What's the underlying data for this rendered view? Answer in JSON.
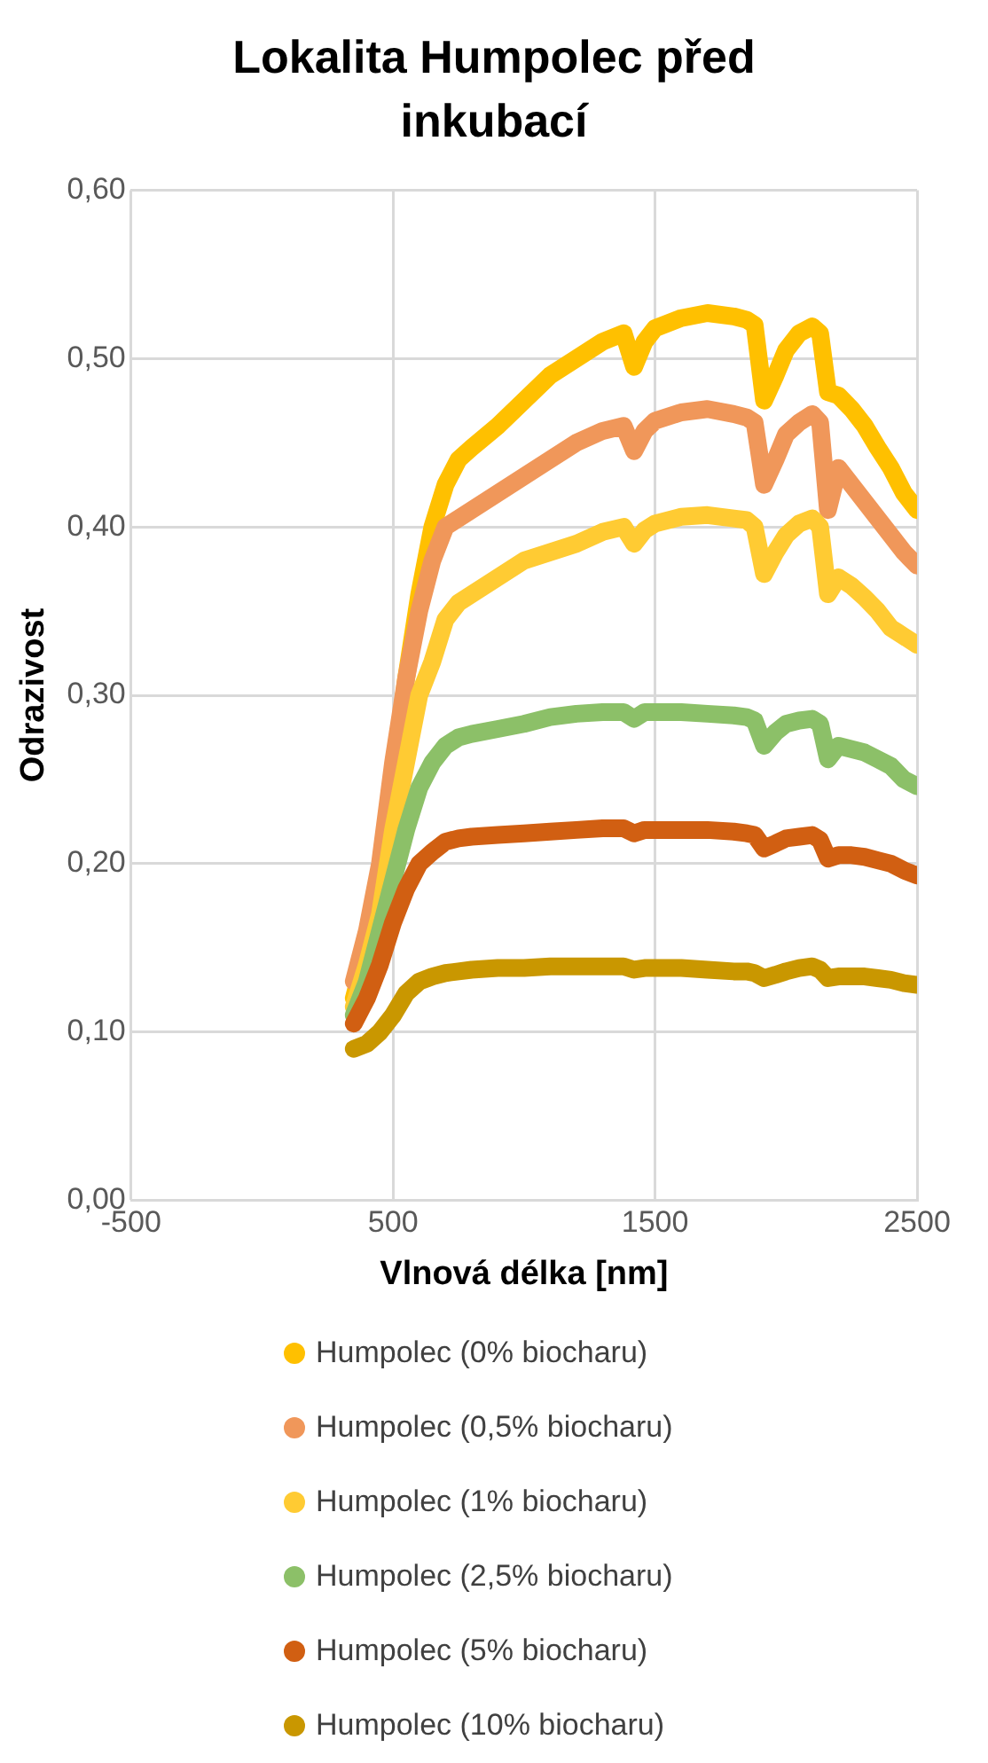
{
  "chart_data": {
    "type": "line",
    "title": "Lokalita Humpolec před inkubací",
    "xlabel": "Vlnová délka [nm]",
    "ylabel": "Odrazivost",
    "x": [
      350,
      400,
      450,
      500,
      550,
      600,
      650,
      700,
      750,
      800,
      900,
      1000,
      1100,
      1200,
      1300,
      1380,
      1420,
      1460,
      1500,
      1600,
      1700,
      1800,
      1850,
      1880,
      1916,
      1960,
      2000,
      2050,
      2100,
      2130,
      2160,
      2200,
      2250,
      2300,
      2350,
      2400,
      2450,
      2500
    ],
    "series": [
      {
        "name": "Humpolec (0% biocharu)",
        "color": "#ffc000",
        "values": [
          0.12,
          0.15,
          0.19,
          0.25,
          0.31,
          0.36,
          0.4,
          0.425,
          0.44,
          0.447,
          0.46,
          0.475,
          0.49,
          0.5,
          0.51,
          0.515,
          0.495,
          0.51,
          0.518,
          0.524,
          0.527,
          0.525,
          0.523,
          0.52,
          0.475,
          0.49,
          0.505,
          0.515,
          0.519,
          0.515,
          0.48,
          0.478,
          0.47,
          0.46,
          0.447,
          0.435,
          0.42,
          0.41
        ]
      },
      {
        "name": "Humpolec (0,5% biocharu)",
        "color": "#f0975a",
        "values": [
          0.13,
          0.16,
          0.2,
          0.26,
          0.31,
          0.35,
          0.38,
          0.4,
          0.405,
          0.41,
          0.42,
          0.43,
          0.44,
          0.45,
          0.457,
          0.46,
          0.445,
          0.457,
          0.463,
          0.468,
          0.47,
          0.467,
          0.465,
          0.462,
          0.425,
          0.44,
          0.455,
          0.462,
          0.467,
          0.462,
          0.41,
          0.435,
          0.425,
          0.415,
          0.405,
          0.395,
          0.385,
          0.377
        ]
      },
      {
        "name": "Humpolec (1% biocharu)",
        "color": "#ffcb33",
        "values": [
          0.115,
          0.14,
          0.17,
          0.22,
          0.26,
          0.3,
          0.32,
          0.345,
          0.355,
          0.36,
          0.37,
          0.38,
          0.385,
          0.39,
          0.397,
          0.4,
          0.39,
          0.398,
          0.402,
          0.406,
          0.407,
          0.405,
          0.404,
          0.4,
          0.372,
          0.385,
          0.395,
          0.402,
          0.405,
          0.4,
          0.36,
          0.37,
          0.365,
          0.358,
          0.35,
          0.34,
          0.335,
          0.33
        ]
      },
      {
        "name": "Humpolec (2,5% biocharu)",
        "color": "#8cc068",
        "values": [
          0.11,
          0.13,
          0.16,
          0.19,
          0.22,
          0.245,
          0.26,
          0.27,
          0.275,
          0.277,
          0.28,
          0.283,
          0.287,
          0.289,
          0.29,
          0.29,
          0.286,
          0.29,
          0.29,
          0.29,
          0.289,
          0.288,
          0.287,
          0.285,
          0.27,
          0.278,
          0.283,
          0.285,
          0.286,
          0.283,
          0.262,
          0.27,
          0.268,
          0.266,
          0.262,
          0.258,
          0.25,
          0.246
        ]
      },
      {
        "name": "Humpolec (5% biocharu)",
        "color": "#d15f12",
        "values": [
          0.105,
          0.12,
          0.14,
          0.165,
          0.185,
          0.2,
          0.207,
          0.213,
          0.215,
          0.216,
          0.217,
          0.218,
          0.219,
          0.22,
          0.221,
          0.221,
          0.218,
          0.22,
          0.22,
          0.22,
          0.22,
          0.219,
          0.218,
          0.217,
          0.209,
          0.212,
          0.215,
          0.216,
          0.217,
          0.214,
          0.203,
          0.205,
          0.205,
          0.204,
          0.202,
          0.2,
          0.196,
          0.193
        ]
      },
      {
        "name": "Humpolec (10% biocharu)",
        "color": "#c99700",
        "values": [
          0.09,
          0.093,
          0.1,
          0.11,
          0.123,
          0.13,
          0.133,
          0.135,
          0.136,
          0.137,
          0.138,
          0.138,
          0.139,
          0.139,
          0.139,
          0.139,
          0.137,
          0.138,
          0.138,
          0.138,
          0.137,
          0.136,
          0.136,
          0.135,
          0.132,
          0.134,
          0.136,
          0.138,
          0.139,
          0.137,
          0.132,
          0.133,
          0.133,
          0.133,
          0.132,
          0.131,
          0.129,
          0.128
        ]
      }
    ],
    "xlim": [
      -500,
      2500
    ],
    "xticks": [
      -500,
      500,
      1500,
      2500
    ],
    "ylim": [
      0,
      0.6
    ],
    "yticks": [
      {
        "value": 0,
        "label": "0,00"
      },
      {
        "value": 0.1,
        "label": "0,10"
      },
      {
        "value": 0.2,
        "label": "0,20"
      },
      {
        "value": 0.3,
        "label": "0,30"
      },
      {
        "value": 0.4,
        "label": "0,40"
      },
      {
        "value": 0.5,
        "label": "0,50"
      },
      {
        "value": 0.6,
        "label": "0,60"
      }
    ],
    "grid": true,
    "legend": "bottom",
    "marker": "none",
    "line_style": "solid"
  }
}
